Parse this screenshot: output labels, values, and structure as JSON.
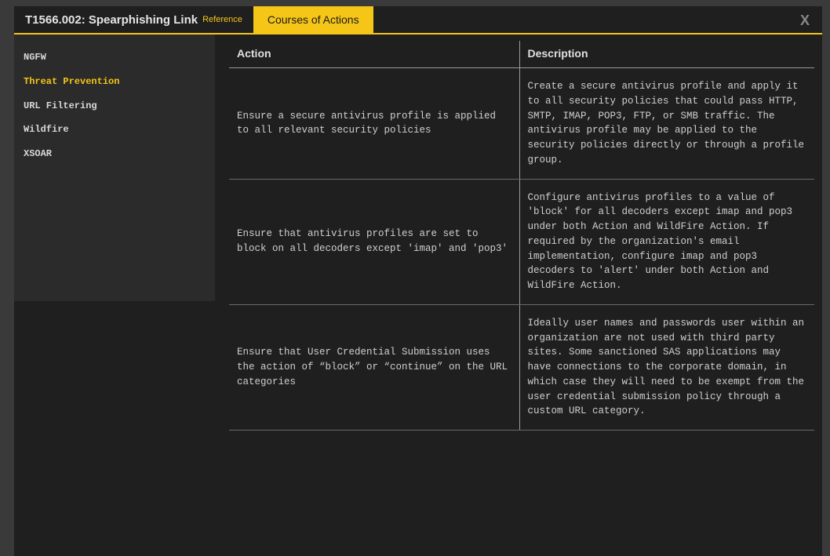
{
  "header": {
    "title": "T1566.002: Spearphishing Link",
    "reference_label": "Reference",
    "active_tab": "Courses of Actions",
    "close_glyph": "X"
  },
  "sidebar": {
    "items": [
      {
        "label": "NGFW",
        "active": false
      },
      {
        "label": "Threat Prevention",
        "active": true
      },
      {
        "label": "URL Filtering",
        "active": false
      },
      {
        "label": "Wildfire",
        "active": false
      },
      {
        "label": "XSOAR",
        "active": false
      }
    ]
  },
  "table": {
    "columns": {
      "action": "Action",
      "description": "Description"
    },
    "rows": [
      {
        "action": "Ensure a secure antivirus profile is applied to all relevant security policies",
        "description": "Create a secure antivirus profile and apply it to all security policies that could pass HTTP, SMTP, IMAP, POP3, FTP, or SMB traffic. The antivirus profile may be applied to the security policies directly or through a profile group."
      },
      {
        "action": "Ensure that antivirus profiles are set to block on all decoders except 'imap' and 'pop3'",
        "description": "Configure antivirus profiles to a value of 'block' for all decoders except imap and pop3 under both Action and WildFire Action. If required by the organization's email implementation, configure imap and pop3 decoders to 'alert' under both Action and WildFire Action."
      },
      {
        "action": "Ensure that User Credential Submission uses the action of “block” or “continue” on the URL categories",
        "description": "Ideally user names and passwords user within an organization are not used with third party sites. Some sanctioned SAS applications may have connections to the corporate domain, in which case they will need to be exempt from the user credential submission policy through a custom URL category."
      }
    ]
  },
  "colors": {
    "accent": "#f5c518",
    "panel_bg": "#1f1f1f",
    "sidebar_bg": "#2b2b2b",
    "page_bg": "#3a3a3a",
    "text": "#cfcfcf",
    "border": "#9a9a9a"
  }
}
